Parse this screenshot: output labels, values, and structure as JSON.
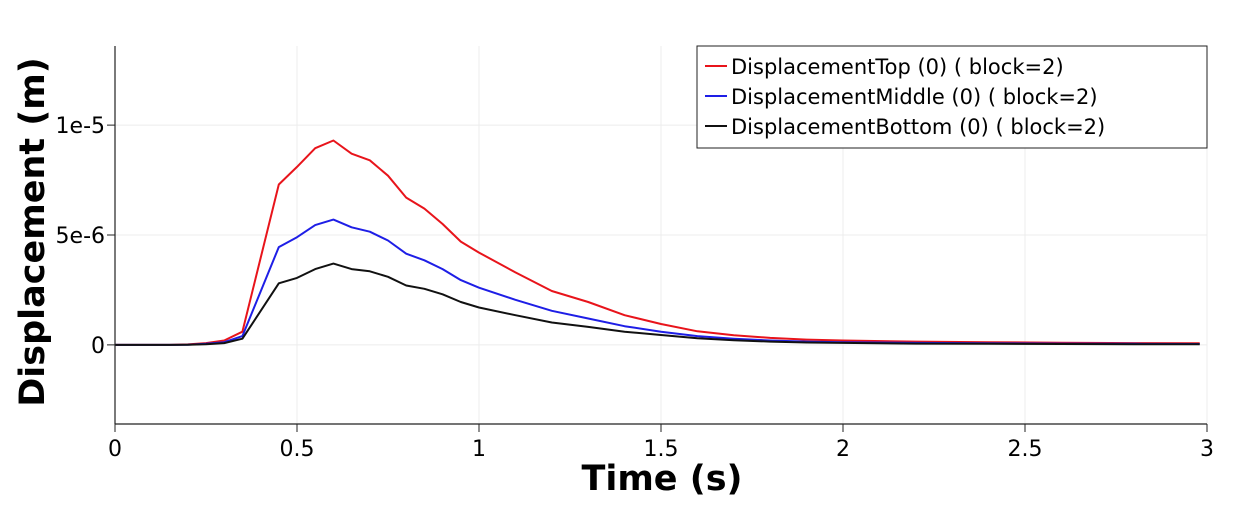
{
  "chart_data": {
    "type": "line",
    "title": "",
    "xlabel": "Time (s)",
    "ylabel": "Displacement (m)",
    "xlim": [
      0,
      3
    ],
    "ylim": [
      -3.6e-06,
      1.36e-05
    ],
    "x_ticks": [
      {
        "value": 0,
        "label": "0"
      },
      {
        "value": 0.5,
        "label": "0.5"
      },
      {
        "value": 1,
        "label": "1"
      },
      {
        "value": 1.5,
        "label": "1.5"
      },
      {
        "value": 2,
        "label": "2"
      },
      {
        "value": 2.5,
        "label": "2.5"
      },
      {
        "value": 3,
        "label": "3"
      }
    ],
    "y_ticks": [
      {
        "value": 0,
        "label": "0"
      },
      {
        "value": 5e-06,
        "label": "5e-6"
      },
      {
        "value": 1e-05,
        "label": "1e-5"
      }
    ],
    "grid": true,
    "legend_position": "top-right",
    "x": [
      0,
      0.05,
      0.1,
      0.15,
      0.2,
      0.25,
      0.3,
      0.35,
      0.45,
      0.5,
      0.55,
      0.6,
      0.65,
      0.7,
      0.75,
      0.8,
      0.85,
      0.9,
      0.95,
      1.0,
      1.1,
      1.2,
      1.3,
      1.4,
      1.5,
      1.6,
      1.7,
      1.8,
      1.9,
      2.0,
      2.2,
      2.4,
      2.6,
      2.8,
      2.98
    ],
    "series": [
      {
        "name": "DisplacementTop (0) ( block=2)",
        "color": "#e8141b",
        "values": [
          0,
          0,
          0,
          0,
          2e-08,
          8e-08,
          2e-07,
          6e-07,
          7.3e-06,
          8.1e-06,
          8.95e-06,
          9.3e-06,
          8.7e-06,
          8.4e-06,
          7.7e-06,
          6.7e-06,
          6.2e-06,
          5.5e-06,
          4.7e-06,
          4.2e-06,
          3.3e-06,
          2.45e-06,
          1.95e-06,
          1.35e-06,
          9.5e-07,
          6.2e-07,
          4.4e-07,
          3.2e-07,
          2.4e-07,
          2e-07,
          1.5e-07,
          1.2e-07,
          1e-07,
          8e-08,
          7e-08
        ]
      },
      {
        "name": "DisplacementMiddle (0) ( block=2)",
        "color": "#1e1ee6",
        "values": [
          0,
          0,
          0,
          0,
          1e-08,
          5e-08,
          1.2e-07,
          4e-07,
          4.45e-06,
          4.9e-06,
          5.45e-06,
          5.7e-06,
          5.35e-06,
          5.15e-06,
          4.75e-06,
          4.15e-06,
          3.85e-06,
          3.45e-06,
          2.95e-06,
          2.6e-06,
          2.05e-06,
          1.55e-06,
          1.2e-06,
          8.5e-07,
          6e-07,
          4e-07,
          2.8e-07,
          2e-07,
          1.5e-07,
          1.2e-07,
          9e-08,
          7e-08,
          6e-08,
          5e-08,
          4e-08
        ]
      },
      {
        "name": "DisplacementBottom (0) ( block=2)",
        "color": "#111111",
        "values": [
          0,
          0,
          0,
          0,
          1e-08,
          3e-08,
          8e-08,
          2.8e-07,
          2.8e-06,
          3.05e-06,
          3.45e-06,
          3.7e-06,
          3.45e-06,
          3.35e-06,
          3.1e-06,
          2.7e-06,
          2.55e-06,
          2.3e-06,
          1.95e-06,
          1.7e-06,
          1.35e-06,
          1.02e-06,
          8.2e-07,
          6e-07,
          4.5e-07,
          3e-07,
          2.1e-07,
          1.5e-07,
          1.1e-07,
          9e-08,
          6e-08,
          5e-08,
          4e-08,
          3e-08,
          3e-08
        ]
      }
    ]
  }
}
